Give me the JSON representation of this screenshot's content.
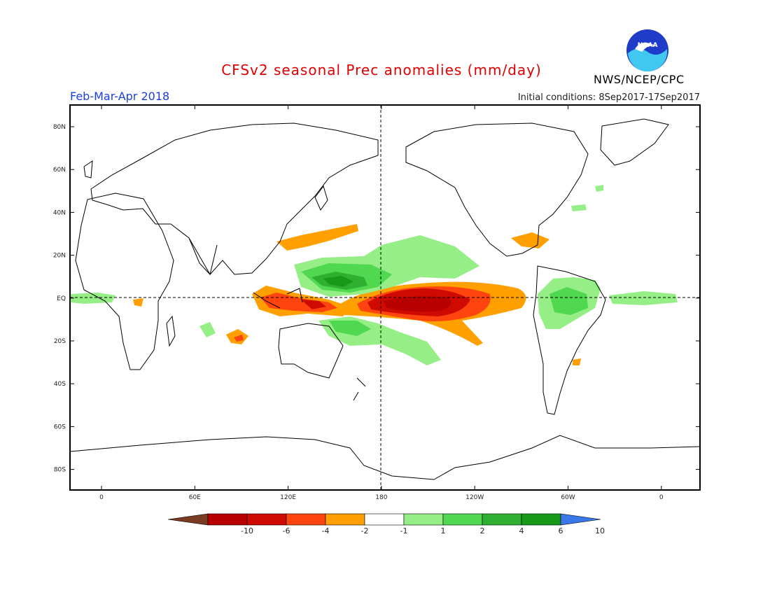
{
  "title": "CFSv2 seasonal Prec anomalies (mm/day)",
  "season": "Feb-Mar-Apr 2018",
  "initial_conditions": "Initial conditions: 8Sep2017-17Sep2017",
  "organization": "NWS/NCEP/CPC",
  "logo_text": "NOAA",
  "map": {
    "lat_ticks": [
      "80N",
      "60N",
      "40N",
      "20N",
      "EQ",
      "20S",
      "40S",
      "60S",
      "80S"
    ],
    "lon_ticks": [
      "0",
      "60E",
      "120E",
      "180",
      "120W",
      "60W",
      "0"
    ]
  },
  "colorbar": {
    "labels": [
      "-10",
      "-6",
      "-4",
      "-2",
      "-1",
      "1",
      "2",
      "4",
      "6",
      "10"
    ],
    "colors": [
      "#7a3b22",
      "#b80000",
      "#cf0a00",
      "#ff4410",
      "#ffa000",
      "#ffffff",
      "#96ee86",
      "#50d850",
      "#30b030",
      "#189a18",
      "#3878e8"
    ]
  }
}
